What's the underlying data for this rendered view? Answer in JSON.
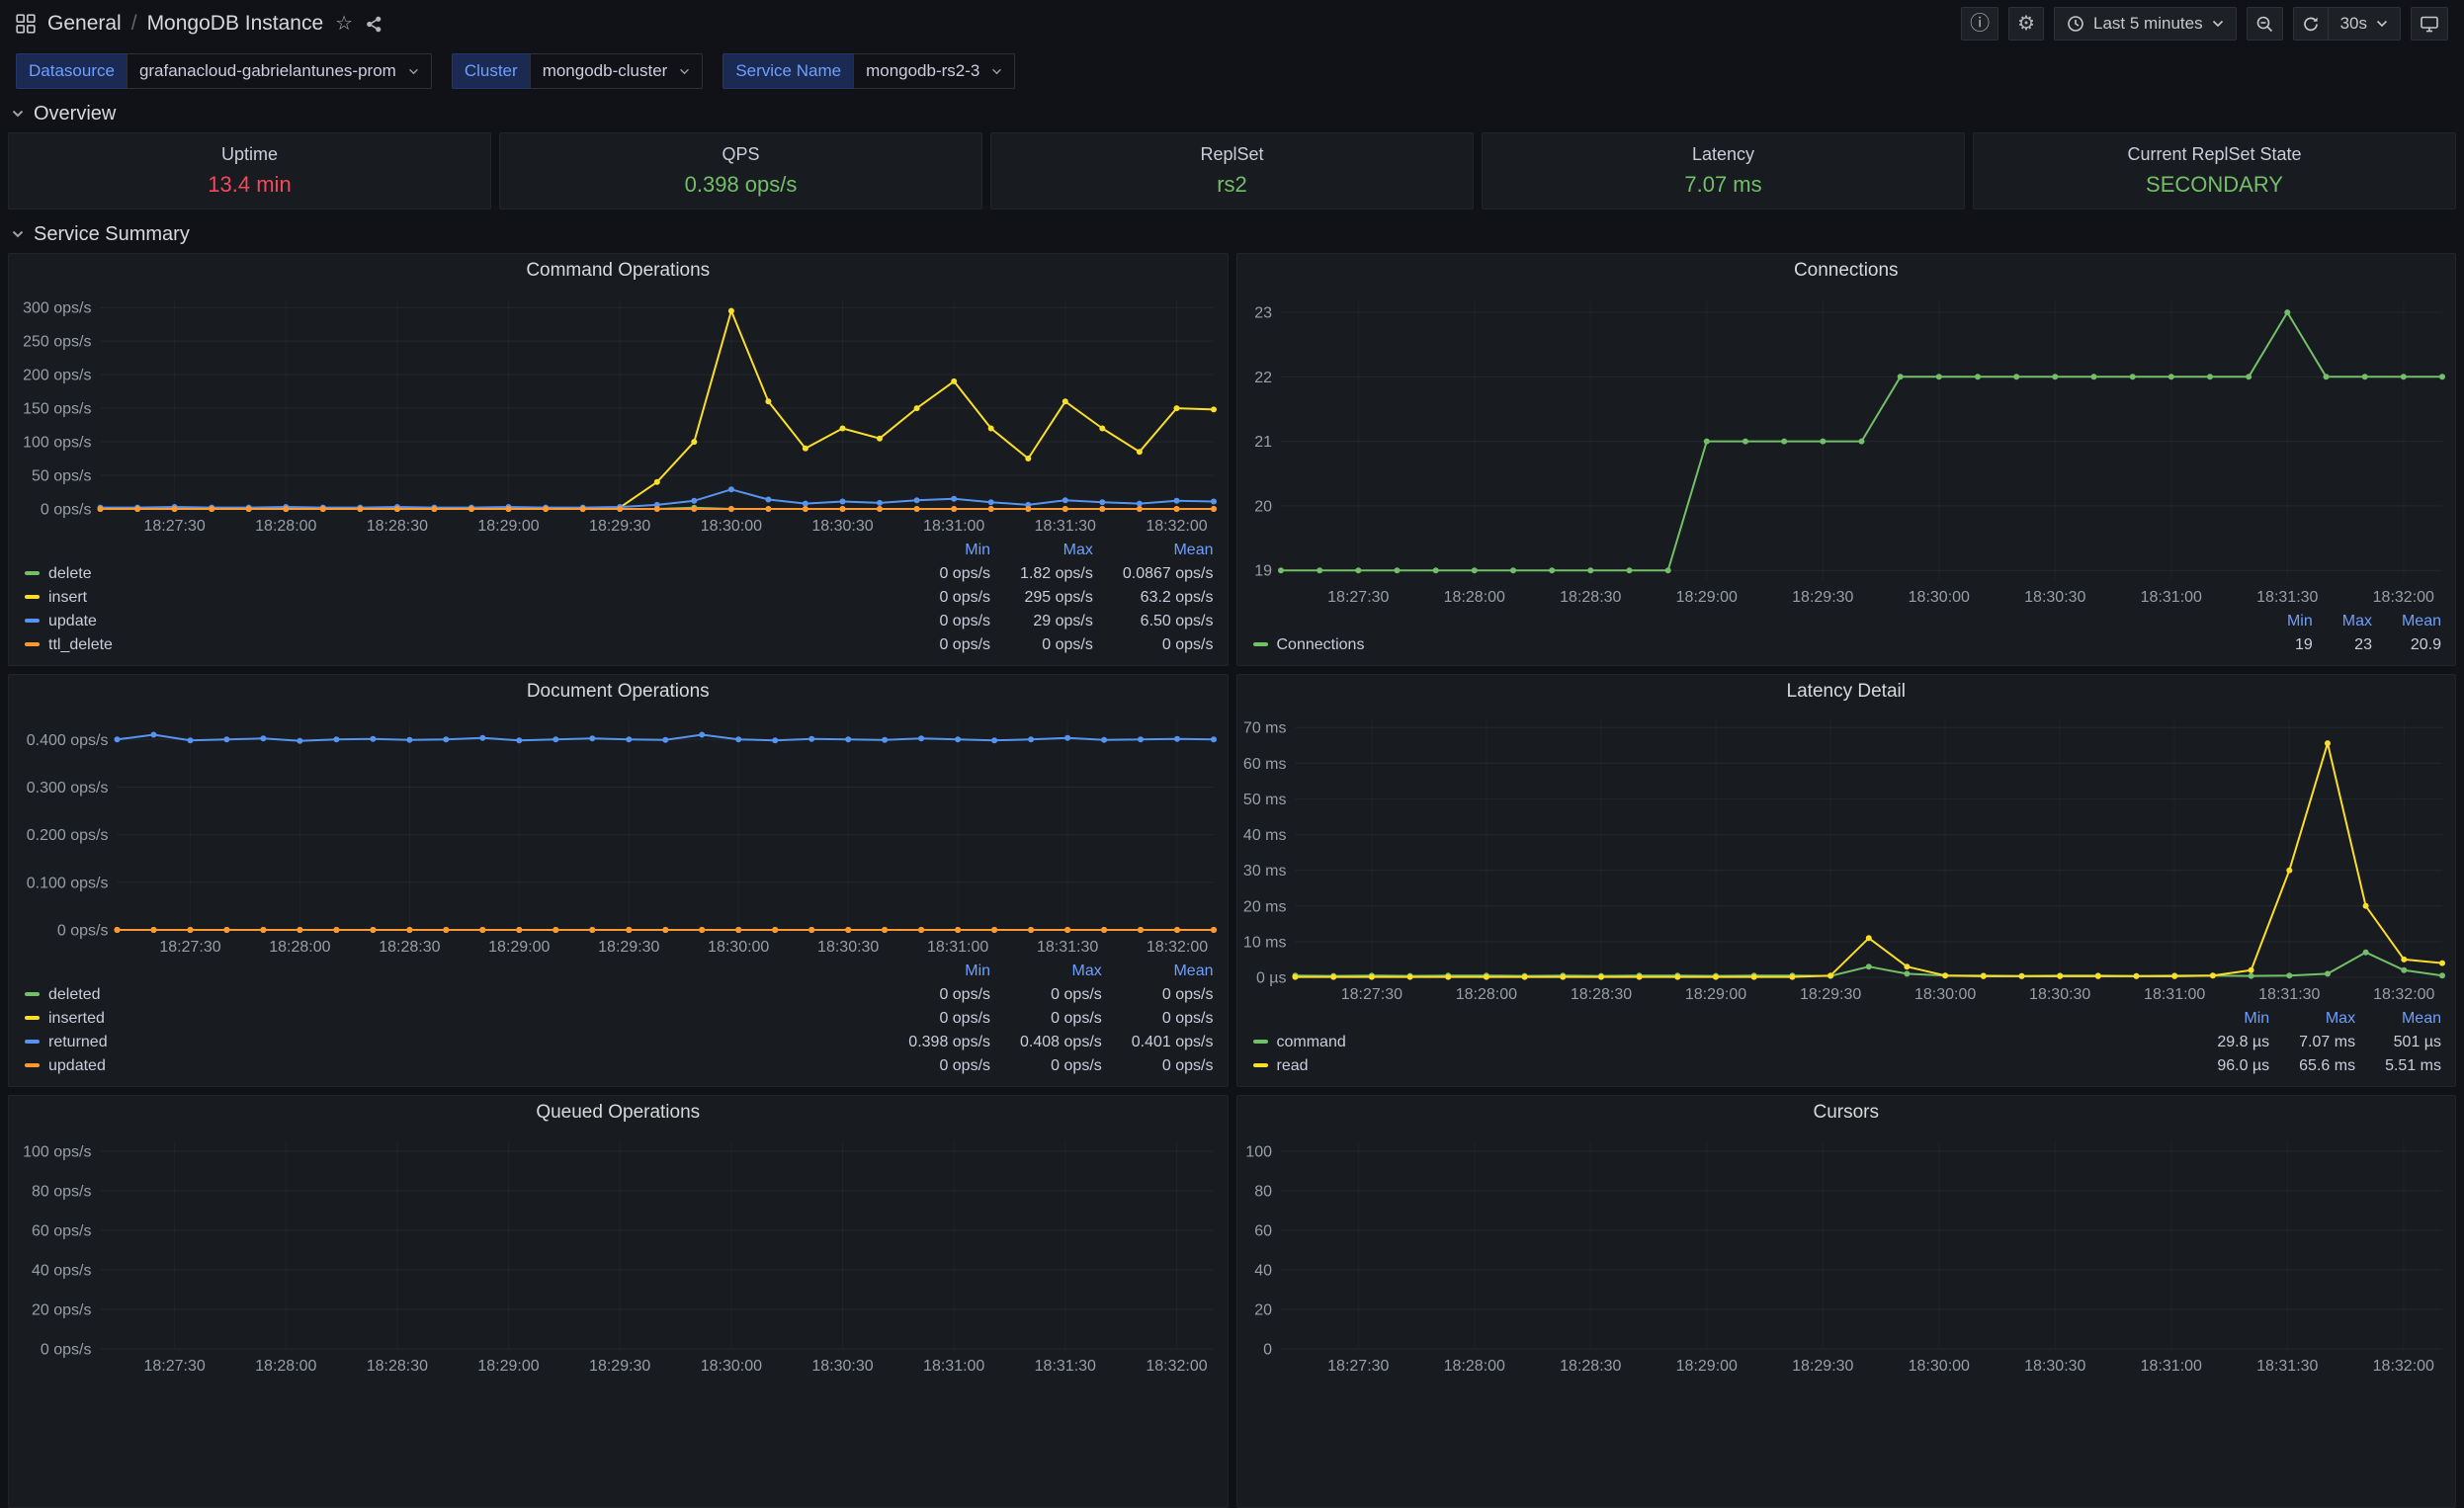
{
  "nav": {
    "folder": "General",
    "separator": "/",
    "dashboard": "MongoDB Instance",
    "time_range": "Last 5 minutes",
    "refresh_interval": "30s"
  },
  "icons": {
    "star": "☆",
    "gear": "⚙",
    "info": "ⓘ"
  },
  "variables": [
    {
      "label": "Datasource",
      "value": "grafanacloud-gabrielantunes-prom"
    },
    {
      "label": "Cluster",
      "value": "mongodb-cluster"
    },
    {
      "label": "Service Name",
      "value": "mongodb-rs2-3"
    }
  ],
  "rows": {
    "overview": "Overview",
    "service_summary": "Service Summary"
  },
  "overview_stats": [
    {
      "title": "Uptime",
      "value": "13.4 min",
      "color": "#f2495c"
    },
    {
      "title": "QPS",
      "value": "0.398 ops/s",
      "color": "#73bf69"
    },
    {
      "title": "ReplSet",
      "value": "rs2",
      "color": "#73bf69"
    },
    {
      "title": "Latency",
      "value": "7.07 ms",
      "color": "#73bf69"
    },
    {
      "title": "Current ReplSet State",
      "value": "SECONDARY",
      "color": "#73bf69"
    }
  ],
  "chart_data": {
    "command_ops": {
      "type": "line",
      "title": "Command Operations",
      "x_start": "18:27:10",
      "x_end": "18:32:10",
      "x_ticks": [
        "18:27:30",
        "18:28:00",
        "18:28:30",
        "18:29:00",
        "18:29:30",
        "18:30:00",
        "18:30:30",
        "18:31:00",
        "18:31:30",
        "18:32:00"
      ],
      "y_min": 0,
      "y_max": 312,
      "y_ticks": [
        {
          "v": 0,
          "label": "0 ops/s"
        },
        {
          "v": 50,
          "label": "50 ops/s"
        },
        {
          "v": 100,
          "label": "100 ops/s"
        },
        {
          "v": 150,
          "label": "150 ops/s"
        },
        {
          "v": 200,
          "label": "200 ops/s"
        },
        {
          "v": 250,
          "label": "250 ops/s"
        },
        {
          "v": 300,
          "label": "300 ops/s"
        }
      ],
      "series": [
        {
          "name": "delete",
          "color": "#73bf69",
          "values": [
            0,
            0,
            0,
            0,
            0,
            0,
            0,
            0,
            0,
            0,
            0,
            0,
            0,
            0,
            0,
            0,
            1.8,
            0,
            0,
            0,
            0,
            0,
            0,
            0,
            0,
            0,
            0,
            0,
            0,
            0,
            0
          ]
        },
        {
          "name": "insert",
          "color": "#fade2a",
          "values": [
            0,
            0,
            0,
            0,
            0,
            0,
            0,
            0,
            0,
            0,
            0,
            0,
            0,
            0,
            2,
            40,
            100,
            295,
            160,
            90,
            120,
            105,
            150,
            190,
            120,
            75,
            160,
            120,
            85,
            150,
            148
          ]
        },
        {
          "name": "update",
          "color": "#5794f2",
          "values": [
            2,
            2,
            3,
            2,
            2,
            3,
            2,
            2,
            3,
            2,
            2,
            3,
            2,
            2,
            3,
            6,
            12,
            29,
            14,
            8,
            11,
            9,
            13,
            15,
            10,
            6,
            13,
            10,
            8,
            12,
            11
          ]
        },
        {
          "name": "ttl_delete",
          "color": "#ff9830",
          "values": [
            0,
            0,
            0,
            0,
            0,
            0,
            0,
            0,
            0,
            0,
            0,
            0,
            0,
            0,
            0,
            0,
            0,
            0,
            0,
            0,
            0,
            0,
            0,
            0,
            0,
            0,
            0,
            0,
            0,
            0,
            0
          ]
        }
      ],
      "legend": {
        "headers": [
          "Min",
          "Max",
          "Mean"
        ],
        "rows": [
          {
            "name": "delete",
            "color": "#73bf69",
            "values": [
              "0 ops/s",
              "1.82 ops/s",
              "0.0867 ops/s"
            ]
          },
          {
            "name": "insert",
            "color": "#fade2a",
            "values": [
              "0 ops/s",
              "295 ops/s",
              "63.2 ops/s"
            ]
          },
          {
            "name": "update",
            "color": "#5794f2",
            "values": [
              "0 ops/s",
              "29 ops/s",
              "6.50 ops/s"
            ]
          },
          {
            "name": "ttl_delete",
            "color": "#ff9830",
            "values": [
              "0 ops/s",
              "0 ops/s",
              "0 ops/s"
            ]
          }
        ]
      }
    },
    "connections": {
      "type": "line",
      "title": "Connections",
      "x_start": "18:27:10",
      "x_end": "18:32:10",
      "x_ticks": [
        "18:27:30",
        "18:28:00",
        "18:28:30",
        "18:29:00",
        "18:29:30",
        "18:30:00",
        "18:30:30",
        "18:31:00",
        "18:31:30",
        "18:32:00"
      ],
      "y_min": 18.85,
      "y_max": 23.2,
      "y_ticks": [
        {
          "v": 19,
          "label": "19"
        },
        {
          "v": 20,
          "label": "20"
        },
        {
          "v": 21,
          "label": "21"
        },
        {
          "v": 22,
          "label": "22"
        },
        {
          "v": 23,
          "label": "23"
        }
      ],
      "series": [
        {
          "name": "Connections",
          "color": "#73bf69",
          "values": [
            19,
            19,
            19,
            19,
            19,
            19,
            19,
            19,
            19,
            19,
            19,
            21,
            21,
            21,
            21,
            21,
            22,
            22,
            22,
            22,
            22,
            22,
            22,
            22,
            22,
            22,
            23,
            22,
            22,
            22,
            22
          ]
        }
      ],
      "legend": {
        "headers": [
          "Min",
          "Max",
          "Mean"
        ],
        "rows": [
          {
            "name": "Connections",
            "color": "#73bf69",
            "values": [
              "19",
              "23",
              "20.9"
            ]
          }
        ]
      }
    },
    "document_ops": {
      "type": "line",
      "title": "Document Operations",
      "x_start": "18:27:10",
      "x_end": "18:32:10",
      "x_ticks": [
        "18:27:30",
        "18:28:00",
        "18:28:30",
        "18:29:00",
        "18:29:30",
        "18:30:00",
        "18:30:30",
        "18:31:00",
        "18:31:30",
        "18:32:00"
      ],
      "y_min": 0,
      "y_max": 0.44,
      "y_ticks": [
        {
          "v": 0,
          "label": "0 ops/s"
        },
        {
          "v": 0.1,
          "label": "0.100 ops/s"
        },
        {
          "v": 0.2,
          "label": "0.200 ops/s"
        },
        {
          "v": 0.3,
          "label": "0.300 ops/s"
        },
        {
          "v": 0.4,
          "label": "0.400 ops/s"
        }
      ],
      "series": [
        {
          "name": "deleted",
          "color": "#73bf69",
          "values": [
            0,
            0,
            0,
            0,
            0,
            0,
            0,
            0,
            0,
            0,
            0,
            0,
            0,
            0,
            0,
            0,
            0,
            0,
            0,
            0,
            0,
            0,
            0,
            0,
            0,
            0,
            0,
            0,
            0,
            0,
            0
          ]
        },
        {
          "name": "inserted",
          "color": "#fade2a",
          "values": [
            0,
            0,
            0,
            0,
            0,
            0,
            0,
            0,
            0,
            0,
            0,
            0,
            0,
            0,
            0,
            0,
            0,
            0,
            0,
            0,
            0,
            0,
            0,
            0,
            0,
            0,
            0,
            0,
            0,
            0,
            0
          ]
        },
        {
          "name": "returned",
          "color": "#5794f2",
          "values": [
            0.4,
            0.41,
            0.398,
            0.4,
            0.402,
            0.397,
            0.4,
            0.401,
            0.399,
            0.4,
            0.403,
            0.398,
            0.4,
            0.402,
            0.4,
            0.399,
            0.41,
            0.4,
            0.398,
            0.401,
            0.4,
            0.399,
            0.402,
            0.4,
            0.398,
            0.4,
            0.403,
            0.399,
            0.4,
            0.401,
            0.4
          ]
        },
        {
          "name": "updated",
          "color": "#ff9830",
          "values": [
            0,
            0,
            0,
            0,
            0,
            0,
            0,
            0,
            0,
            0,
            0,
            0,
            0,
            0,
            0,
            0,
            0,
            0,
            0,
            0,
            0,
            0,
            0,
            0,
            0,
            0,
            0,
            0,
            0,
            0,
            0
          ]
        }
      ],
      "legend": {
        "headers": [
          "Min",
          "Max",
          "Mean"
        ],
        "rows": [
          {
            "name": "deleted",
            "color": "#73bf69",
            "values": [
              "0 ops/s",
              "0 ops/s",
              "0 ops/s"
            ]
          },
          {
            "name": "inserted",
            "color": "#fade2a",
            "values": [
              "0 ops/s",
              "0 ops/s",
              "0 ops/s"
            ]
          },
          {
            "name": "returned",
            "color": "#5794f2",
            "values": [
              "0.398 ops/s",
              "0.408 ops/s",
              "0.401 ops/s"
            ]
          },
          {
            "name": "updated",
            "color": "#ff9830",
            "values": [
              "0 ops/s",
              "0 ops/s",
              "0 ops/s"
            ]
          }
        ]
      }
    },
    "latency_detail": {
      "type": "line",
      "title": "Latency Detail",
      "x_start": "18:27:10",
      "x_end": "18:32:10",
      "x_ticks": [
        "18:27:30",
        "18:28:00",
        "18:28:30",
        "18:29:00",
        "18:29:30",
        "18:30:00",
        "18:30:30",
        "18:31:00",
        "18:31:30",
        "18:32:00"
      ],
      "y_min": 0,
      "y_max": 72,
      "y_ticks": [
        {
          "v": 0,
          "label": "0 µs"
        },
        {
          "v": 10,
          "label": "10 ms"
        },
        {
          "v": 20,
          "label": "20 ms"
        },
        {
          "v": 30,
          "label": "30 ms"
        },
        {
          "v": 40,
          "label": "40 ms"
        },
        {
          "v": 50,
          "label": "50 ms"
        },
        {
          "v": 60,
          "label": "60 ms"
        },
        {
          "v": 70,
          "label": "70 ms"
        }
      ],
      "series": [
        {
          "name": "command",
          "color": "#73bf69",
          "values": [
            0.5,
            0.4,
            0.5,
            0.4,
            0.5,
            0.5,
            0.4,
            0.5,
            0.4,
            0.5,
            0.5,
            0.4,
            0.5,
            0.5,
            0.4,
            3,
            1,
            0.5,
            0.5,
            0.4,
            0.5,
            0.5,
            0.4,
            0.5,
            0.5,
            0.4,
            0.5,
            1,
            7,
            2,
            0.5
          ]
        },
        {
          "name": "read",
          "color": "#fade2a",
          "values": [
            0.1,
            0.1,
            0.1,
            0.1,
            0.1,
            0.1,
            0.1,
            0.1,
            0.1,
            0.1,
            0.1,
            0.1,
            0.1,
            0.1,
            0.5,
            11,
            3,
            0.5,
            0.3,
            0.3,
            0.3,
            0.3,
            0.3,
            0.3,
            0.5,
            2,
            30,
            65.6,
            20,
            5,
            4
          ]
        }
      ],
      "legend": {
        "headers": [
          "Min",
          "Max",
          "Mean"
        ],
        "rows": [
          {
            "name": "command",
            "color": "#73bf69",
            "values": [
              "29.8 µs",
              "7.07 ms",
              "501 µs"
            ]
          },
          {
            "name": "read",
            "color": "#fade2a",
            "values": [
              "96.0 µs",
              "65.6 ms",
              "5.51 ms"
            ]
          }
        ]
      }
    },
    "queued_ops": {
      "type": "line",
      "title": "Queued Operations",
      "x_start": "18:27:10",
      "x_end": "18:32:10",
      "x_ticks": [
        "18:27:30",
        "18:28:00",
        "18:28:30",
        "18:29:00",
        "18:29:30",
        "18:30:00",
        "18:30:30",
        "18:31:00",
        "18:31:30",
        "18:32:00"
      ],
      "y_min": 0,
      "y_max": 105,
      "y_ticks": [
        {
          "v": 0,
          "label": "0 ops/s"
        },
        {
          "v": 20,
          "label": "20 ops/s"
        },
        {
          "v": 40,
          "label": "40 ops/s"
        },
        {
          "v": 60,
          "label": "60 ops/s"
        },
        {
          "v": 80,
          "label": "80 ops/s"
        },
        {
          "v": 100,
          "label": "100 ops/s"
        }
      ],
      "series": []
    },
    "cursors": {
      "type": "line",
      "title": "Cursors",
      "x_start": "18:27:10",
      "x_end": "18:32:10",
      "x_ticks": [
        "18:27:30",
        "18:28:00",
        "18:28:30",
        "18:29:00",
        "18:29:30",
        "18:30:00",
        "18:30:30",
        "18:31:00",
        "18:31:30",
        "18:32:00"
      ],
      "y_min": 0,
      "y_max": 105,
      "y_ticks": [
        {
          "v": 0,
          "label": "0"
        },
        {
          "v": 20,
          "label": "20"
        },
        {
          "v": 40,
          "label": "40"
        },
        {
          "v": 60,
          "label": "60"
        },
        {
          "v": 80,
          "label": "80"
        },
        {
          "v": 100,
          "label": "100"
        }
      ],
      "series": []
    }
  }
}
